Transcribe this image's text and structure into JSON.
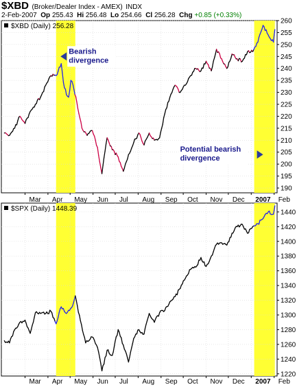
{
  "header": {
    "symbol": "$XBD",
    "description": "(Broker/Dealer Index - AMEX)",
    "exchange": "INDX",
    "date": "2-Feb-2007",
    "open_label": "Op",
    "open": "255.43",
    "high_label": "Hi",
    "high": "256.48",
    "low_label": "Lo",
    "low": "254.66",
    "close_label": "Cl",
    "close": "256.28",
    "change_label": "Chg",
    "change": "+0.85 (+0.33%)",
    "change_color": "#008000"
  },
  "colors": {
    "highlight": "#ffff33",
    "price_line": "#000000",
    "down_line": "#cc0044",
    "divergence_line": "#2222ee",
    "annotation_text": "#1a1a8c",
    "arrow": "#2b3a9c",
    "grid": "#d9d9d9"
  },
  "chart_data": [
    {
      "type": "line",
      "panel_label": "$XBD (Daily) 256.28",
      "ylim": [
        188,
        260
      ],
      "yticks": [
        190,
        195,
        200,
        205,
        210,
        215,
        220,
        225,
        230,
        235,
        240,
        245,
        250,
        255,
        260
      ],
      "xticks": [
        "Mar",
        "Apr",
        "May",
        "Jun",
        "Jul",
        "Aug",
        "Sep",
        "Oct",
        "Nov",
        "Dec",
        "2007",
        "Feb"
      ],
      "highlight_bands": [
        [
          "2006-04-12",
          "2006-05-08"
        ],
        [
          "2007-01-05",
          "2007-02-02"
        ]
      ],
      "annotations": [
        {
          "text_lines": [
            "Bearish",
            "divergence"
          ],
          "date": "2006-04-18",
          "value": 245
        },
        {
          "text_lines": [
            "Potential bearish",
            "divergence"
          ],
          "date": "2007-01-05",
          "value": 204
        }
      ],
      "series": [
        {
          "dates": [
            "2006-02-01",
            "2006-02-08",
            "2006-02-15",
            "2006-02-22",
            "2006-03-01",
            "2006-03-08",
            "2006-03-15",
            "2006-03-22",
            "2006-03-29",
            "2006-04-05",
            "2006-04-12",
            "2006-04-19",
            "2006-04-22",
            "2006-04-26",
            "2006-04-29",
            "2006-05-02",
            "2006-05-05",
            "2006-05-10",
            "2006-05-17",
            "2006-05-24",
            "2006-05-31",
            "2006-06-07",
            "2006-06-13",
            "2006-06-20",
            "2006-06-27",
            "2006-07-05",
            "2006-07-12",
            "2006-07-19",
            "2006-07-26",
            "2006-08-02",
            "2006-08-09",
            "2006-08-16",
            "2006-08-23",
            "2006-08-30",
            "2006-09-06",
            "2006-09-13",
            "2006-09-20",
            "2006-09-27",
            "2006-10-04",
            "2006-10-11",
            "2006-10-18",
            "2006-10-25",
            "2006-11-01",
            "2006-11-08",
            "2006-11-15",
            "2006-11-22",
            "2006-11-29",
            "2006-12-06",
            "2006-12-13",
            "2006-12-20",
            "2006-12-27",
            "2007-01-03",
            "2007-01-10",
            "2007-01-17",
            "2007-01-24",
            "2007-01-31",
            "2007-02-02"
          ],
          "values": [
            213,
            212,
            215,
            220,
            217,
            222,
            225,
            228,
            233,
            237,
            237,
            242,
            234,
            229,
            228,
            235,
            233,
            226,
            215,
            212,
            214,
            207,
            196,
            211,
            206,
            203,
            197,
            204,
            209,
            213,
            208,
            213,
            210,
            211,
            221,
            228,
            233,
            230,
            233,
            237,
            240,
            239,
            243,
            239,
            248,
            244,
            240,
            246,
            244,
            243,
            247,
            247,
            251,
            258,
            254,
            251,
            256.28
          ]
        }
      ]
    },
    {
      "type": "line",
      "panel_label": "$SPX (Daily) 1448.39",
      "ylim": [
        1217,
        1452
      ],
      "yticks": [
        1220,
        1240,
        1260,
        1280,
        1300,
        1320,
        1340,
        1360,
        1380,
        1400,
        1420,
        1440
      ],
      "xticks": [
        "Mar",
        "Apr",
        "May",
        "Jun",
        "Jul",
        "Aug",
        "Sep",
        "Oct",
        "Nov",
        "Dec",
        "2007",
        "Feb"
      ],
      "highlight_bands": [
        [
          "2006-04-12",
          "2006-05-08"
        ],
        [
          "2007-01-05",
          "2007-02-02"
        ]
      ],
      "series": [
        {
          "dates": [
            "2006-02-01",
            "2006-02-08",
            "2006-02-15",
            "2006-02-22",
            "2006-03-01",
            "2006-03-08",
            "2006-03-15",
            "2006-03-22",
            "2006-03-29",
            "2006-04-05",
            "2006-04-12",
            "2006-04-19",
            "2006-04-26",
            "2006-05-03",
            "2006-05-08",
            "2006-05-15",
            "2006-05-22",
            "2006-05-31",
            "2006-06-07",
            "2006-06-13",
            "2006-06-20",
            "2006-06-27",
            "2006-07-05",
            "2006-07-12",
            "2006-07-19",
            "2006-07-26",
            "2006-08-02",
            "2006-08-09",
            "2006-08-16",
            "2006-08-23",
            "2006-08-30",
            "2006-09-06",
            "2006-09-13",
            "2006-09-20",
            "2006-09-27",
            "2006-10-04",
            "2006-10-11",
            "2006-10-18",
            "2006-10-25",
            "2006-11-01",
            "2006-11-08",
            "2006-11-15",
            "2006-11-22",
            "2006-11-29",
            "2006-12-06",
            "2006-12-13",
            "2006-12-20",
            "2006-12-27",
            "2007-01-03",
            "2007-01-10",
            "2007-01-17",
            "2007-01-24",
            "2007-01-31",
            "2007-02-02"
          ],
          "values": [
            1265,
            1262,
            1280,
            1290,
            1293,
            1275,
            1303,
            1302,
            1302,
            1305,
            1288,
            1311,
            1302,
            1310,
            1326,
            1292,
            1262,
            1270,
            1256,
            1224,
            1252,
            1245,
            1280,
            1259,
            1236,
            1268,
            1280,
            1274,
            1302,
            1290,
            1303,
            1306,
            1318,
            1325,
            1336,
            1350,
            1362,
            1365,
            1378,
            1366,
            1380,
            1396,
            1398,
            1395,
            1411,
            1420,
            1423,
            1411,
            1420,
            1424,
            1431,
            1440,
            1437,
            1448.39
          ]
        }
      ]
    }
  ]
}
